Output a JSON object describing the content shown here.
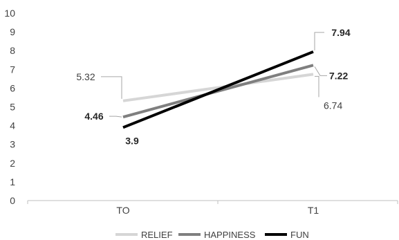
{
  "chart_data": {
    "type": "line",
    "categories": [
      "TO",
      "T1"
    ],
    "ylim": [
      0,
      10
    ],
    "yticks": [
      0,
      1,
      2,
      3,
      4,
      5,
      6,
      7,
      8,
      9,
      10
    ],
    "grid": false,
    "legend_position": "bottom",
    "series": [
      {
        "name": "RELIEF",
        "values": [
          5.32,
          6.74
        ],
        "labels": [
          "5.32",
          "6.74"
        ],
        "color": "#d6d6d6",
        "bold_labels": false
      },
      {
        "name": "HAPPINESS",
        "values": [
          4.46,
          7.22
        ],
        "labels": [
          "4.46",
          "7.22"
        ],
        "color": "#7f7f7f",
        "bold_labels": true
      },
      {
        "name": "FUN",
        "values": [
          3.9,
          7.94
        ],
        "labels": [
          "3.9",
          "7.94"
        ],
        "color": "#000000",
        "bold_labels": true
      }
    ]
  }
}
